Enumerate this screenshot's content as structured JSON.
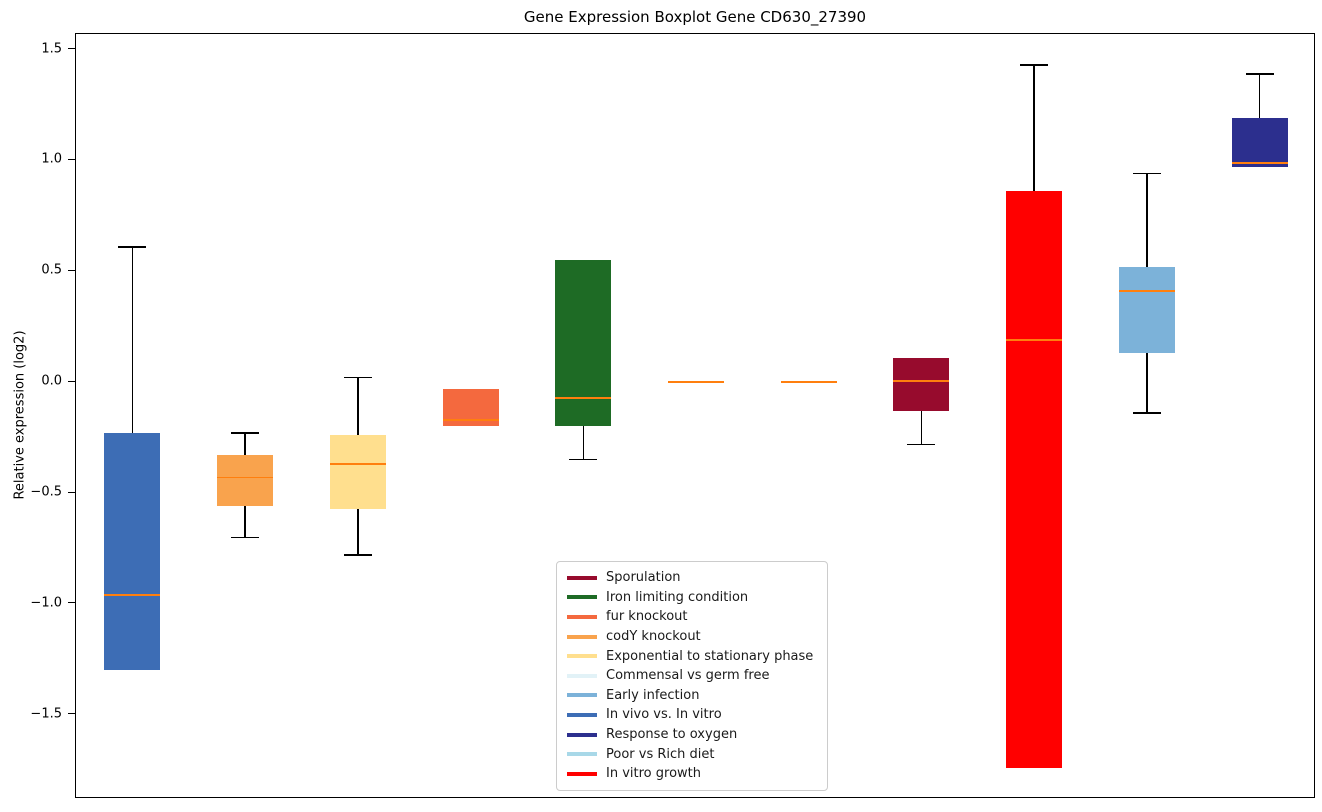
{
  "chart_data": {
    "type": "boxplot",
    "title": "Gene Expression Boxplot Gene CD630_27390",
    "xlabel": "",
    "ylabel": "Relative expression (log2)",
    "ylim": [
      -1.88,
      1.57
    ],
    "yticks": [
      1.5,
      1.0,
      0.5,
      0.0,
      -0.5,
      -1.0,
      -1.5
    ],
    "grid": false,
    "median_color": "#ff7f0e",
    "whisker_color": "#000000",
    "boxes": [
      {
        "label": "In vivo vs. In vitro",
        "color": "#3d6db5",
        "whislo": -1.3,
        "q1": -1.3,
        "med": -0.96,
        "q3": -0.23,
        "whishi": 0.61
      },
      {
        "label": "codY knockout",
        "color": "#f9a34d",
        "whislo": -0.7,
        "q1": -0.56,
        "med": -0.43,
        "q3": -0.33,
        "whishi": -0.23
      },
      {
        "label": "Exponential to stationary phase",
        "color": "#ffdf8e",
        "whislo": -0.78,
        "q1": -0.57,
        "med": -0.37,
        "q3": -0.24,
        "whishi": 0.02
      },
      {
        "label": "fur knockout",
        "color": "#f4693e",
        "whislo": -0.2,
        "q1": -0.2,
        "med": -0.17,
        "q3": -0.03,
        "whishi": -0.03
      },
      {
        "label": "Iron limiting condition",
        "color": "#1e6b25",
        "whislo": -0.35,
        "q1": -0.2,
        "med": -0.07,
        "q3": 0.55,
        "whishi": 0.55
      },
      {
        "label": "Commensal vs germ free",
        "color": "#e2f2f7",
        "whislo": -0.005,
        "q1": -0.005,
        "med": 0.0,
        "q3": 0.005,
        "whishi": 0.005
      },
      {
        "label": "Poor vs Rich diet",
        "color": "#a8d8e8",
        "whislo": -0.005,
        "q1": -0.005,
        "med": 0.0,
        "q3": 0.005,
        "whishi": 0.005
      },
      {
        "label": "Sporulation",
        "color": "#970b2d",
        "whislo": -0.28,
        "q1": -0.13,
        "med": 0.005,
        "q3": 0.11,
        "whishi": 0.11
      },
      {
        "label": "In vitro growth",
        "color": "#ff0000",
        "whislo": -1.74,
        "q1": -1.74,
        "med": 0.19,
        "q3": 0.86,
        "whishi": 1.43
      },
      {
        "label": "Early infection",
        "color": "#7cb2d9",
        "whislo": -0.14,
        "q1": 0.13,
        "med": 0.41,
        "q3": 0.52,
        "whishi": 0.94
      },
      {
        "label": "Response to oxygen",
        "color": "#2c2f8e",
        "whislo": 0.97,
        "q1": 0.97,
        "med": 0.99,
        "q3": 1.19,
        "whishi": 1.39
      }
    ],
    "legend": {
      "position": "inside lower center",
      "entries": [
        {
          "label": "Sporulation",
          "color": "#970b2d"
        },
        {
          "label": "Iron limiting condition",
          "color": "#1e6b25"
        },
        {
          "label": "fur knockout",
          "color": "#f4693e"
        },
        {
          "label": "codY knockout",
          "color": "#f9a34d"
        },
        {
          "label": "Exponential to stationary phase",
          "color": "#ffdf8e"
        },
        {
          "label": "Commensal vs germ free",
          "color": "#e2f2f7"
        },
        {
          "label": "Early infection",
          "color": "#7cb2d9"
        },
        {
          "label": "In vivo vs. In vitro",
          "color": "#3d6db5"
        },
        {
          "label": "Response to oxygen",
          "color": "#2c2f8e"
        },
        {
          "label": "Poor vs Rich diet",
          "color": "#a8d8e8"
        },
        {
          "label": "In vitro growth",
          "color": "#ff0000"
        }
      ]
    }
  }
}
